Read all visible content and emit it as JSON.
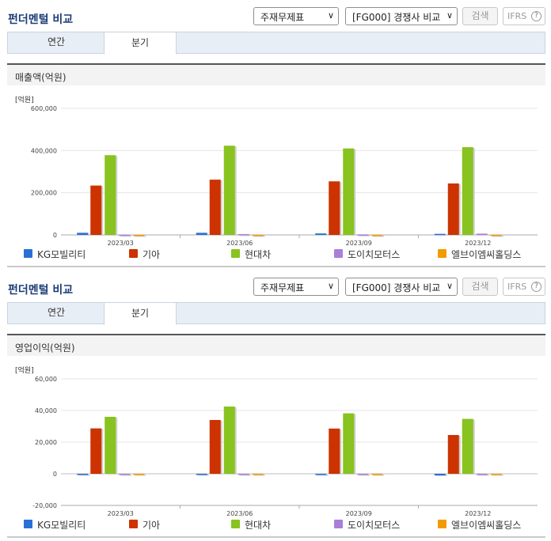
{
  "panels": [
    {
      "title": "펀더멘털 비교",
      "report_select": "주재무제표",
      "compare_select": "[FG000] 경쟁사 비교",
      "search_label": "검색",
      "ifrs_label": "IFRS",
      "tabs": [
        "연간",
        "분기"
      ],
      "active_tab": "분기",
      "chart_title": "매출액(억원)",
      "unit_label": "[억원]"
    },
    {
      "title": "펀더멘털 비교",
      "report_select": "주재무제표",
      "compare_select": "[FG000] 경쟁사 비교",
      "search_label": "검색",
      "ifrs_label": "IFRS",
      "tabs": [
        "연간",
        "분기"
      ],
      "active_tab": "분기",
      "chart_title": "영업이익(억원)",
      "unit_label": "[억원]"
    }
  ],
  "colors": {
    "KG모빌리티": "#2a6fd6",
    "기아": "#cc3300",
    "현대차": "#88c31f",
    "도이치모터스": "#a97fd9",
    "엘브이엠씨홀딩스": "#f29b00",
    "title": "#1c3c77"
  },
  "chart_data": [
    {
      "type": "bar",
      "title": "매출액(억원)",
      "ylabel": "[억원]",
      "categories": [
        "2023/03",
        "2023/06",
        "2023/09",
        "2023/12"
      ],
      "ylim": [
        0,
        600000
      ],
      "yticks": [
        0,
        200000,
        400000,
        600000
      ],
      "ytick_labels": [
        "0",
        "200,000",
        "400,000",
        "600,000"
      ],
      "grid": true,
      "legend": "bottom",
      "series": [
        {
          "name": "KG모빌리티",
          "values": [
            10000,
            10000,
            7000,
            5000
          ]
        },
        {
          "name": "기아",
          "values": [
            234000,
            262000,
            254000,
            244000
          ]
        },
        {
          "name": "현대차",
          "values": [
            378000,
            423000,
            410000,
            416000
          ]
        },
        {
          "name": "도이치모터스",
          "values": [
            1000,
            4000,
            2500,
            6000
          ]
        },
        {
          "name": "엘브이엠씨홀딩스",
          "values": [
            200,
            200,
            200,
            200
          ]
        }
      ]
    },
    {
      "type": "bar",
      "title": "영업이익(억원)",
      "ylabel": "[억원]",
      "categories": [
        "2023/03",
        "2023/06",
        "2023/09",
        "2023/12"
      ],
      "ylim": [
        -20000,
        60000
      ],
      "yticks": [
        -20000,
        0,
        20000,
        40000,
        60000
      ],
      "ytick_labels": [
        "-20,000",
        "0",
        "20,000",
        "40,000",
        "60,000"
      ],
      "grid": true,
      "legend": "bottom",
      "series": [
        {
          "name": "KG모빌리티",
          "values": [
            0,
            0,
            0,
            -1000
          ]
        },
        {
          "name": "기아",
          "values": [
            28700,
            34000,
            28600,
            24500
          ]
        },
        {
          "name": "현대차",
          "values": [
            36000,
            42500,
            38200,
            34700
          ]
        },
        {
          "name": "도이치모터스",
          "values": [
            0,
            0,
            0,
            0
          ]
        },
        {
          "name": "엘브이엠씨홀딩스",
          "values": [
            0,
            0,
            0,
            0
          ]
        }
      ]
    }
  ]
}
